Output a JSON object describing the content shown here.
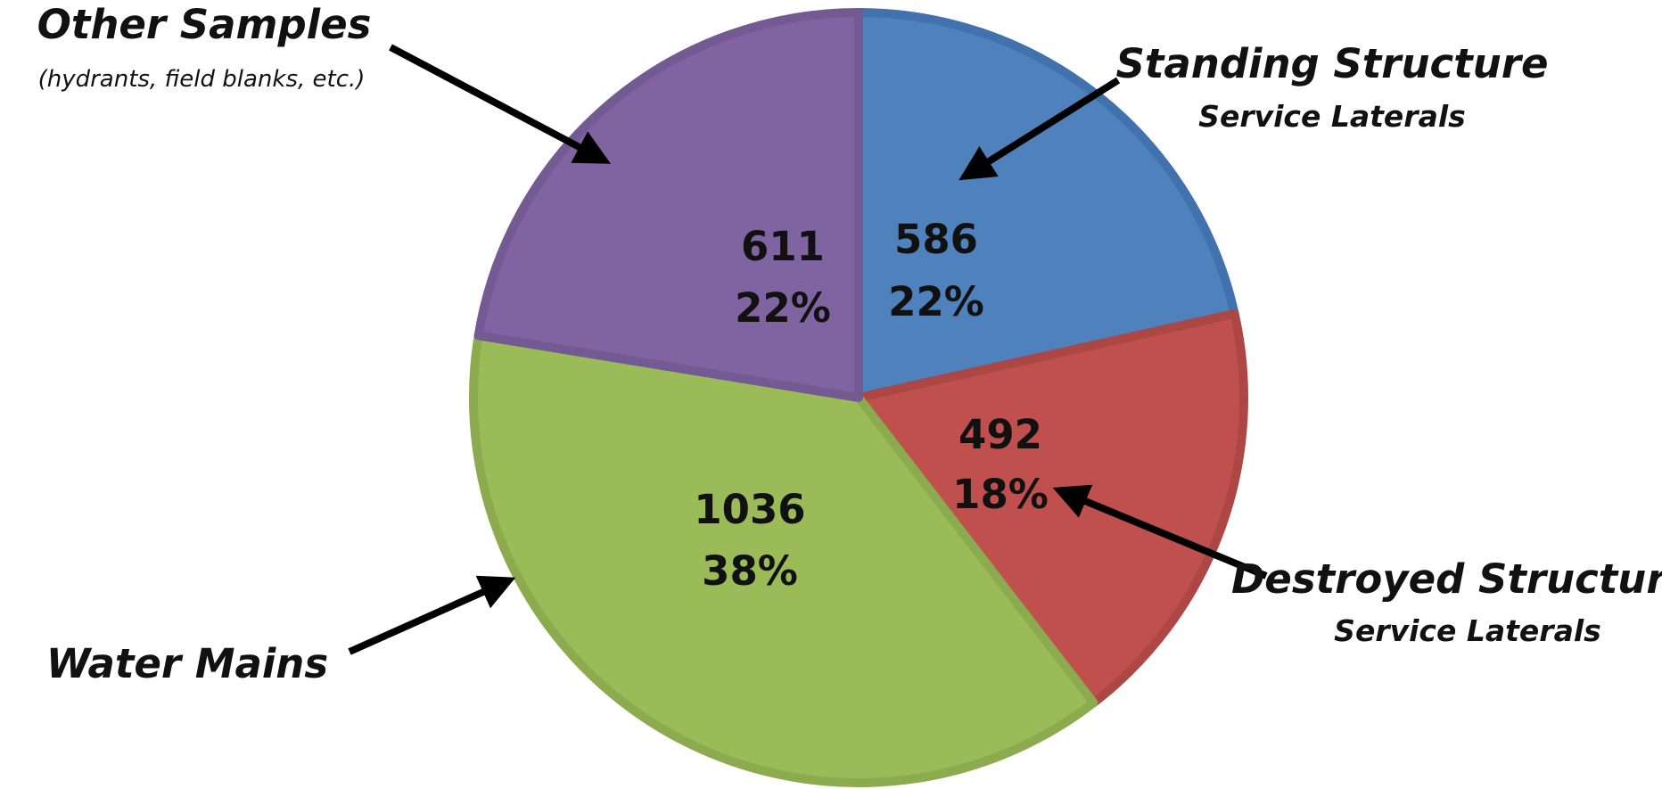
{
  "chart_data": {
    "type": "pie",
    "title": "",
    "slices": [
      {
        "label": "Standing Structure",
        "sublabel": "Service Laterals",
        "value": 586,
        "percent": "22%",
        "color": "#4f81bd",
        "edge": "#4272ad"
      },
      {
        "label": "Destroyed Structure",
        "sublabel": "Service Laterals",
        "value": 492,
        "percent": "18%",
        "color": "#c0504d",
        "edge": "#ad4744"
      },
      {
        "label": "Water Mains",
        "sublabel": "",
        "value": 1036,
        "percent": "38%",
        "color": "#9bbb59",
        "edge": "#8caa4e"
      },
      {
        "label": "Other Samples",
        "sublabel": "(hydrants, field blanks, etc.)",
        "value": 611,
        "percent": "22%",
        "color": "#8064a2",
        "edge": "#735a93"
      }
    ],
    "start_angle_deg": 0,
    "direction": "clockwise",
    "legend": "none",
    "data_labels": "value and percent inside slices"
  }
}
